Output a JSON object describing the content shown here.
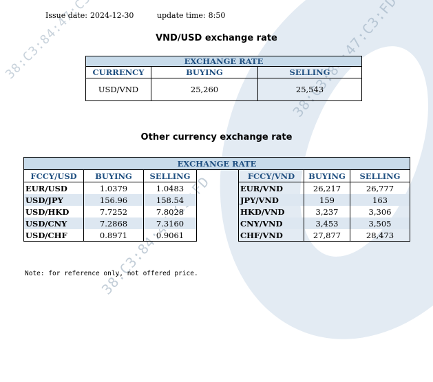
{
  "meta": {
    "issue_date_label": "Issue date:",
    "issue_date": "2024-12-30",
    "update_time_label": "update time:",
    "update_time": "8:50"
  },
  "watermark": "38:C3:84:47:C3:FD",
  "section1": {
    "title": "VND/USD exchange rate",
    "header": "EXCHANGE RATE",
    "columns": [
      "CURRENCY",
      "BUYING",
      "SELLING"
    ],
    "row": {
      "currency": "USD/VND",
      "buying": "25,260",
      "selling": "25,543"
    }
  },
  "section2": {
    "title": "Other currency exchange rate",
    "header": "EXCHANGE  RATE",
    "left_columns": [
      "FCCY/USD",
      "BUYING",
      "SELLING"
    ],
    "right_columns": [
      "FCCY/VND",
      "BUYING",
      "SELLING"
    ],
    "left_rows": [
      {
        "ccy": "EUR/USD",
        "buying": "1.0379",
        "selling": "1.0483"
      },
      {
        "ccy": "USD/JPY",
        "buying": "156.96",
        "selling": "158.54"
      },
      {
        "ccy": "USD/HKD",
        "buying": "7.7252",
        "selling": "7.8028"
      },
      {
        "ccy": "USD/CNY",
        "buying": "7.2868",
        "selling": "7.3160"
      },
      {
        "ccy": "USD/CHF",
        "buying": "0.8971",
        "selling": "0.9061"
      }
    ],
    "right_rows": [
      {
        "ccy": "EUR/VND",
        "buying": "26,217",
        "selling": "26,777"
      },
      {
        "ccy": "JPY/VND",
        "buying": "159",
        "selling": "163"
      },
      {
        "ccy": "HKD/VND",
        "buying": "3,237",
        "selling": "3,306"
      },
      {
        "ccy": "CNY/VND",
        "buying": "3,453",
        "selling": "3,505"
      },
      {
        "ccy": "CHF/VND",
        "buying": "27,877",
        "selling": "28,473"
      }
    ]
  },
  "note": "Note: for reference only, not offered price.",
  "colors": {
    "header_bg": "#c8dbea",
    "header_text": "#1f4f80",
    "alt_row": "#dde7f1"
  }
}
